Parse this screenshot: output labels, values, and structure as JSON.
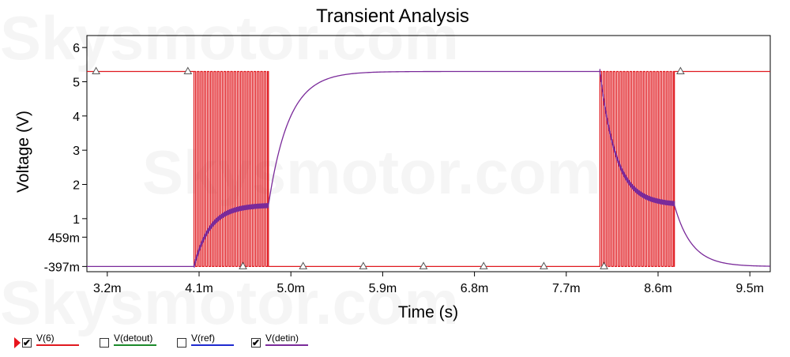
{
  "chart_data": {
    "type": "line",
    "title": "Transient Analysis",
    "xlabel": "Time (s)",
    "ylabel": "Voltage (V)",
    "xlim": [
      0.003,
      0.0097
    ],
    "ylim": [
      -0.55,
      6.35
    ],
    "x_ticks": [
      {
        "value": 0.0032,
        "label": "3.2m"
      },
      {
        "value": 0.0041,
        "label": "4.1m"
      },
      {
        "value": 0.005,
        "label": "5.0m"
      },
      {
        "value": 0.0059,
        "label": "5.9m"
      },
      {
        "value": 0.0068,
        "label": "6.8m"
      },
      {
        "value": 0.0077,
        "label": "7.7m"
      },
      {
        "value": 0.0086,
        "label": "8.6m"
      },
      {
        "value": 0.0095,
        "label": "9.5m"
      }
    ],
    "y_ticks": [
      {
        "value": -0.397,
        "label": "-397m"
      },
      {
        "value": 0.459,
        "label": "459m"
      },
      {
        "value": 1,
        "label": "1"
      },
      {
        "value": 2,
        "label": "2"
      },
      {
        "value": 3,
        "label": "3"
      },
      {
        "value": 4,
        "label": "4"
      },
      {
        "value": 5,
        "label": "5"
      },
      {
        "value": 6,
        "label": "6"
      }
    ],
    "grid": false,
    "series": [
      {
        "name": "V(6)",
        "color": "#e0191f",
        "checked": true,
        "description_points": [
          [
            0.003,
            5.3
          ],
          [
            0.00397,
            5.3
          ],
          [
            0.00398,
            -0.397
          ],
          [
            0.00408,
            -0.397
          ]
        ],
        "segments": [
          {
            "kind": "level",
            "x_start": 0.003,
            "x_end": 0.00405,
            "value": 5.3
          },
          {
            "kind": "pulse_train",
            "x_start": 0.00405,
            "x_end": 0.00478,
            "period": 3.27e-05,
            "high": 5.3,
            "low": -0.397
          },
          {
            "kind": "level",
            "x_start": 0.00478,
            "x_end": 0.00803,
            "value": -0.397
          },
          {
            "kind": "pulse_train",
            "x_start": 0.00803,
            "x_end": 0.00876,
            "period": 3.27e-05,
            "high": 5.3,
            "low": -0.397
          },
          {
            "kind": "level",
            "x_start": 0.00876,
            "x_end": 0.0097,
            "value": 5.3
          }
        ]
      },
      {
        "name": "V(detout)",
        "color": "#1b8a2b",
        "checked": false
      },
      {
        "name": "V(ref)",
        "color": "#1e2ad0",
        "checked": false
      },
      {
        "name": "V(detin)",
        "color": "#7a2a9a",
        "checked": true,
        "segments": [
          {
            "kind": "level",
            "x_start": 0.003,
            "x_end": 0.00405,
            "value": -0.397
          },
          {
            "kind": "rc_charge",
            "x_start": 0.00405,
            "x_end": 0.00478,
            "from": -0.397,
            "to": 1.4,
            "tau": 0.00016,
            "ripple": 0.12
          },
          {
            "kind": "rc_charge",
            "x_start": 0.00478,
            "x_end": 0.00803,
            "from": 1.4,
            "to": 5.3,
            "tau": 0.0002,
            "ripple": 0
          },
          {
            "kind": "rc_charge",
            "x_start": 0.00803,
            "x_end": 0.00876,
            "from": 5.3,
            "to": 1.4,
            "tau": 0.00016,
            "ripple": 0.12
          },
          {
            "kind": "rc_charge",
            "x_start": 0.00876,
            "x_end": 0.0097,
            "from": 1.4,
            "to": -0.397,
            "tau": 0.00017,
            "ripple": 0
          }
        ]
      }
    ],
    "markers": {
      "symbol": "triangle",
      "points": [
        [
          0.00309,
          5.3
        ],
        [
          0.00399,
          5.3
        ],
        [
          0.00453,
          -0.397
        ],
        [
          0.00512,
          -0.397
        ],
        [
          0.00571,
          -0.397
        ],
        [
          0.0063,
          -0.397
        ],
        [
          0.00689,
          -0.397
        ],
        [
          0.00748,
          -0.397
        ],
        [
          0.00807,
          -0.397
        ],
        [
          0.00882,
          5.3
        ]
      ]
    }
  },
  "watermark": "Skysmotor.com",
  "legend": [
    {
      "name": "V(6)",
      "checked": true,
      "color": "#e0191f",
      "active_marker": true
    },
    {
      "name": "V(detout)",
      "checked": false,
      "color": "#1b8a2b"
    },
    {
      "name": "V(ref)",
      "checked": false,
      "color": "#1e2ad0"
    },
    {
      "name": "V(detin)",
      "checked": true,
      "color": "#7a2a9a"
    }
  ]
}
